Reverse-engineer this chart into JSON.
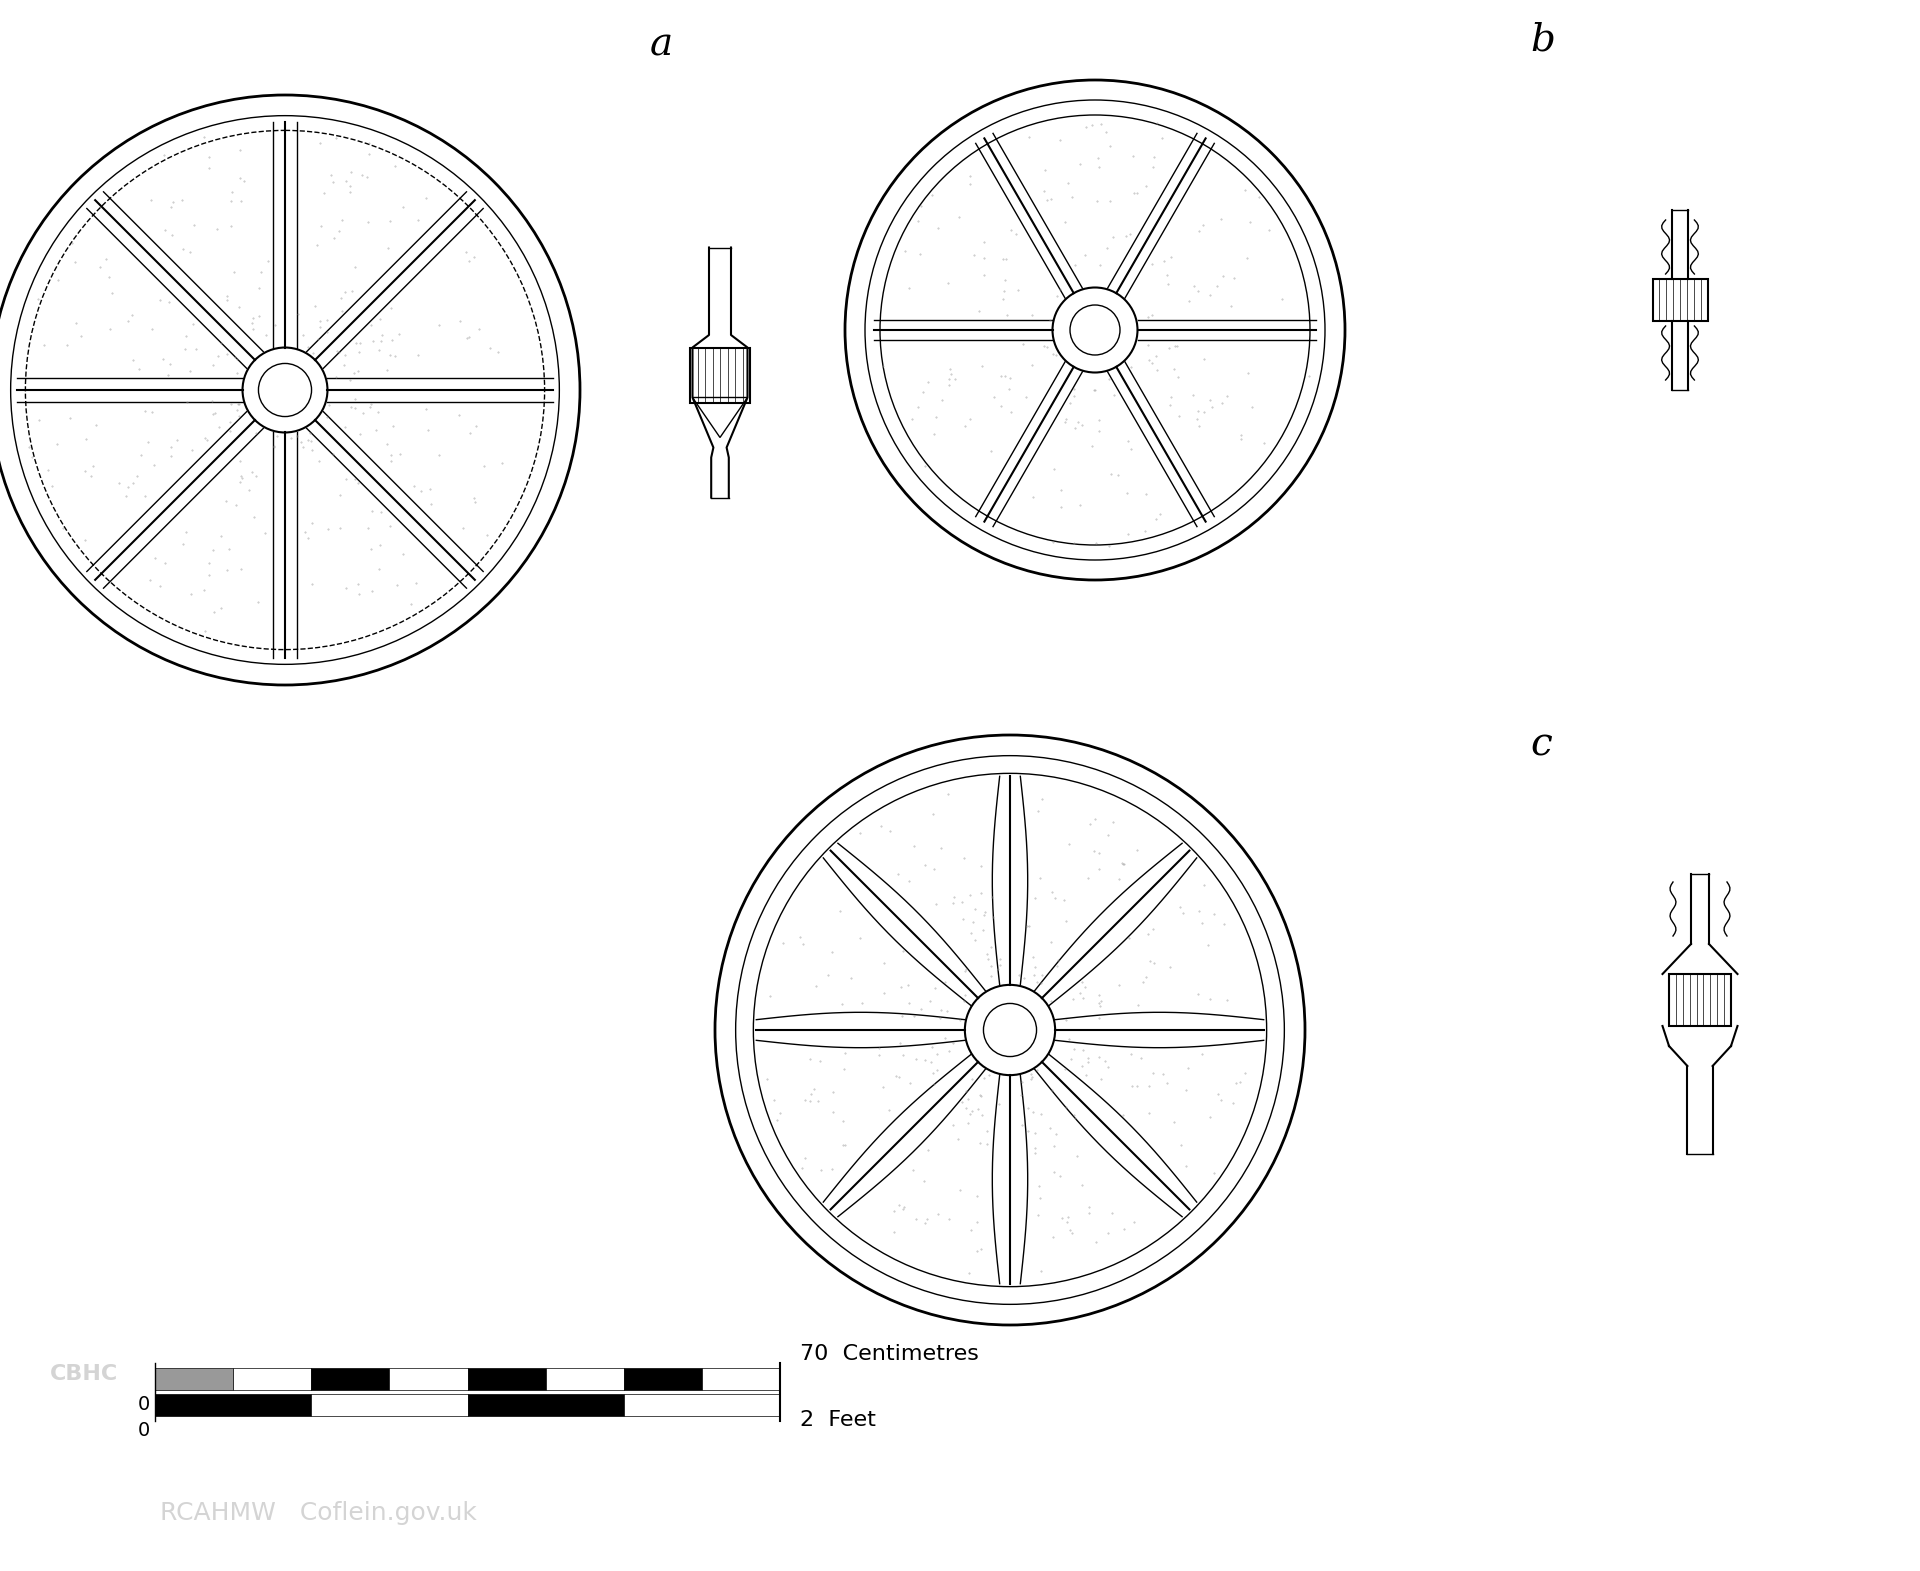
{
  "background_color": "#ffffff",
  "line_color": "#000000",
  "dot_color": "#888888",
  "label_a": "a",
  "label_b": "b",
  "label_c": "c",
  "scale_text_cm": "70  Centimetres",
  "scale_text_ft": "2  Feet",
  "scale_text_0": "0",
  "watermark": "RCAHMW   Coflein.gov.uk",
  "cbhc_text": "CBHC",
  "figsize": [
    19.2,
    15.71
  ],
  "dpi": 100
}
